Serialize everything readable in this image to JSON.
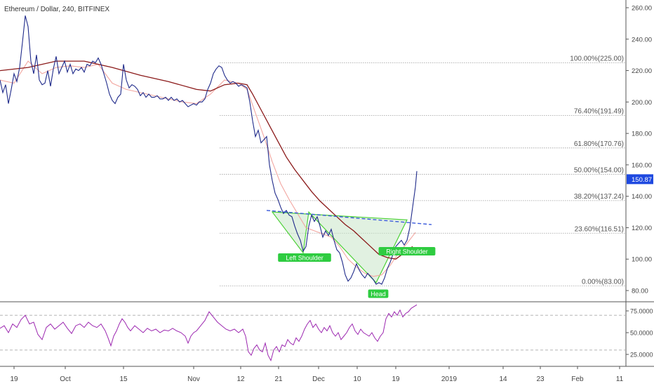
{
  "header": {
    "symbol": "Ethereum / Dollar, 240, BITFINEX"
  },
  "chart_data": {
    "type": "line",
    "title": "Ethereum / Dollar, 240, BITFINEX",
    "price_axis": {
      "ticks": [
        80,
        100,
        120,
        140,
        160,
        180,
        200,
        220,
        240,
        260
      ],
      "tick_labels": [
        "80.00",
        "100.00",
        "120.00",
        "140.00",
        "160.00",
        "180.00",
        "200.00",
        "220.00",
        "240.00",
        "260.00"
      ],
      "range": [
        75,
        265
      ]
    },
    "time_axis": {
      "ticks": [
        "19",
        "Oct",
        "15",
        "Nov",
        "12",
        "21",
        "Dec",
        "10",
        "19",
        "2019",
        "14",
        "23",
        "Feb",
        "11"
      ]
    },
    "current_price": {
      "value": 150.87,
      "label": "150.87",
      "color": "#1e49e0"
    },
    "fibonacci": [
      {
        "label": "100.00%(225.00)",
        "price": 225.0
      },
      {
        "label": "76.40%(191.49)",
        "price": 191.49
      },
      {
        "label": "61.80%(170.76)",
        "price": 170.76
      },
      {
        "label": "50.00%(154.00)",
        "price": 154.0
      },
      {
        "label": "38.20%(137.24)",
        "price": 137.24
      },
      {
        "label": "23.60%(116.51)",
        "price": 116.51
      },
      {
        "label": "0.00%(83.00)",
        "price": 83.0
      }
    ],
    "pattern_labels": [
      "Left Shoulder",
      "Head",
      "Right Shoulder"
    ],
    "price_series": [
      [
        0,
        214
      ],
      [
        4,
        206
      ],
      [
        8,
        211
      ],
      [
        12,
        199
      ],
      [
        16,
        208
      ],
      [
        20,
        218
      ],
      [
        24,
        213
      ],
      [
        28,
        222
      ],
      [
        32,
        238
      ],
      [
        36,
        255
      ],
      [
        40,
        248
      ],
      [
        44,
        226
      ],
      [
        48,
        218
      ],
      [
        52,
        230
      ],
      [
        56,
        214
      ],
      [
        60,
        211
      ],
      [
        64,
        212
      ],
      [
        68,
        220
      ],
      [
        72,
        210
      ],
      [
        76,
        221
      ],
      [
        80,
        229
      ],
      [
        84,
        218
      ],
      [
        88,
        222
      ],
      [
        92,
        226
      ],
      [
        96,
        219
      ],
      [
        100,
        224
      ],
      [
        104,
        218
      ],
      [
        108,
        221
      ],
      [
        112,
        220
      ],
      [
        116,
        222
      ],
      [
        120,
        219
      ],
      [
        124,
        224
      ],
      [
        128,
        223
      ],
      [
        132,
        226
      ],
      [
        136,
        225
      ],
      [
        140,
        228
      ],
      [
        144,
        224
      ],
      [
        148,
        218
      ],
      [
        152,
        212
      ],
      [
        156,
        205
      ],
      [
        160,
        201
      ],
      [
        164,
        199
      ],
      [
        168,
        203
      ],
      [
        172,
        205
      ],
      [
        176,
        224
      ],
      [
        180,
        214
      ],
      [
        184,
        209
      ],
      [
        188,
        211
      ],
      [
        192,
        210
      ],
      [
        196,
        208
      ],
      [
        200,
        204
      ],
      [
        204,
        206
      ],
      [
        208,
        203
      ],
      [
        212,
        205
      ],
      [
        216,
        203
      ],
      [
        220,
        203
      ],
      [
        224,
        204
      ],
      [
        228,
        202
      ],
      [
        232,
        202
      ],
      [
        236,
        203
      ],
      [
        240,
        201
      ],
      [
        244,
        203
      ],
      [
        248,
        201
      ],
      [
        252,
        202
      ],
      [
        256,
        200
      ],
      [
        260,
        201
      ],
      [
        264,
        199
      ],
      [
        268,
        197
      ],
      [
        272,
        198
      ],
      [
        276,
        199
      ],
      [
        280,
        198
      ],
      [
        284,
        200
      ],
      [
        288,
        200
      ],
      [
        292,
        202
      ],
      [
        296,
        208
      ],
      [
        300,
        212
      ],
      [
        304,
        218
      ],
      [
        308,
        221
      ],
      [
        312,
        223
      ],
      [
        316,
        222
      ],
      [
        320,
        217
      ],
      [
        324,
        214
      ],
      [
        328,
        212
      ],
      [
        332,
        213
      ],
      [
        336,
        212
      ],
      [
        340,
        210
      ],
      [
        344,
        211
      ],
      [
        348,
        210
      ],
      [
        352,
        209
      ],
      [
        356,
        200
      ],
      [
        360,
        188
      ],
      [
        364,
        178
      ],
      [
        368,
        182
      ],
      [
        372,
        174
      ],
      [
        376,
        176
      ],
      [
        380,
        178
      ],
      [
        384,
        160
      ],
      [
        388,
        150
      ],
      [
        392,
        142
      ],
      [
        396,
        138
      ],
      [
        400,
        133
      ],
      [
        404,
        129
      ],
      [
        408,
        131
      ],
      [
        412,
        128
      ],
      [
        416,
        127
      ],
      [
        420,
        121
      ],
      [
        424,
        116
      ],
      [
        428,
        112
      ],
      [
        432,
        105
      ],
      [
        436,
        108
      ],
      [
        440,
        121
      ],
      [
        444,
        128
      ],
      [
        448,
        124
      ],
      [
        452,
        127
      ],
      [
        456,
        121
      ],
      [
        460,
        114
      ],
      [
        464,
        118
      ],
      [
        468,
        115
      ],
      [
        472,
        119
      ],
      [
        476,
        112
      ],
      [
        480,
        106
      ],
      [
        484,
        104
      ],
      [
        488,
        98
      ],
      [
        492,
        90
      ],
      [
        496,
        86
      ],
      [
        500,
        88
      ],
      [
        504,
        92
      ],
      [
        508,
        97
      ],
      [
        512,
        93
      ],
      [
        516,
        90
      ],
      [
        520,
        88
      ],
      [
        524,
        91
      ],
      [
        528,
        89
      ],
      [
        532,
        87
      ],
      [
        536,
        84
      ],
      [
        540,
        85
      ],
      [
        544,
        84
      ],
      [
        548,
        88
      ],
      [
        552,
        94
      ],
      [
        556,
        98
      ],
      [
        560,
        103
      ],
      [
        564,
        108
      ],
      [
        568,
        110
      ],
      [
        572,
        112
      ],
      [
        576,
        109
      ],
      [
        580,
        112
      ],
      [
        584,
        120
      ],
      [
        588,
        133
      ],
      [
        592,
        146
      ],
      [
        594,
        156
      ]
    ],
    "ma_slow": [
      [
        0,
        220
      ],
      [
        40,
        222
      ],
      [
        80,
        226
      ],
      [
        120,
        226
      ],
      [
        160,
        222
      ],
      [
        200,
        217
      ],
      [
        240,
        213
      ],
      [
        280,
        208
      ],
      [
        300,
        207
      ],
      [
        320,
        211
      ],
      [
        340,
        212
      ],
      [
        352,
        211
      ],
      [
        360,
        205
      ],
      [
        372,
        195
      ],
      [
        384,
        185
      ],
      [
        396,
        175
      ],
      [
        408,
        165
      ],
      [
        420,
        157
      ],
      [
        432,
        150
      ],
      [
        444,
        143
      ],
      [
        456,
        137
      ],
      [
        468,
        132
      ],
      [
        480,
        127
      ],
      [
        492,
        122
      ],
      [
        504,
        118
      ],
      [
        516,
        113
      ],
      [
        528,
        108
      ],
      [
        540,
        103
      ],
      [
        552,
        101
      ],
      [
        564,
        100
      ],
      [
        576,
        104
      ],
      [
        588,
        108
      ]
    ],
    "ma_fast": [
      [
        0,
        214
      ],
      [
        20,
        212
      ],
      [
        40,
        226
      ],
      [
        60,
        218
      ],
      [
        80,
        222
      ],
      [
        100,
        223
      ],
      [
        120,
        222
      ],
      [
        140,
        224
      ],
      [
        160,
        212
      ],
      [
        180,
        208
      ],
      [
        200,
        206
      ],
      [
        220,
        204
      ],
      [
        240,
        202
      ],
      [
        260,
        200
      ],
      [
        280,
        199
      ],
      [
        300,
        205
      ],
      [
        320,
        214
      ],
      [
        340,
        212
      ],
      [
        352,
        208
      ],
      [
        364,
        193
      ],
      [
        376,
        178
      ],
      [
        388,
        162
      ],
      [
        400,
        148
      ],
      [
        412,
        138
      ],
      [
        424,
        129
      ],
      [
        436,
        120
      ],
      [
        448,
        118
      ],
      [
        460,
        116
      ],
      [
        472,
        114
      ],
      [
        484,
        108
      ],
      [
        496,
        100
      ],
      [
        508,
        95
      ],
      [
        520,
        91
      ],
      [
        532,
        89
      ],
      [
        544,
        90
      ],
      [
        556,
        96
      ],
      [
        568,
        104
      ],
      [
        580,
        110
      ],
      [
        592,
        117
      ]
    ],
    "rsi": {
      "ticks": [
        25,
        50,
        75
      ],
      "tick_labels": [
        "25.0000",
        "50.0000",
        "75.0000"
      ],
      "levels": [
        30,
        70
      ],
      "range": [
        15,
        85
      ],
      "series": [
        [
          0,
          55
        ],
        [
          6,
          58
        ],
        [
          12,
          50
        ],
        [
          18,
          60
        ],
        [
          24,
          56
        ],
        [
          30,
          65
        ],
        [
          36,
          70
        ],
        [
          42,
          60
        ],
        [
          48,
          62
        ],
        [
          54,
          48
        ],
        [
          60,
          42
        ],
        [
          66,
          56
        ],
        [
          72,
          60
        ],
        [
          78,
          54
        ],
        [
          84,
          58
        ],
        [
          90,
          62
        ],
        [
          96,
          55
        ],
        [
          102,
          49
        ],
        [
          108,
          58
        ],
        [
          114,
          60
        ],
        [
          120,
          56
        ],
        [
          126,
          62
        ],
        [
          132,
          58
        ],
        [
          138,
          56
        ],
        [
          144,
          60
        ],
        [
          150,
          52
        ],
        [
          154,
          44
        ],
        [
          158,
          35
        ],
        [
          162,
          46
        ],
        [
          166,
          52
        ],
        [
          170,
          60
        ],
        [
          174,
          66
        ],
        [
          178,
          62
        ],
        [
          182,
          56
        ],
        [
          186,
          52
        ],
        [
          192,
          58
        ],
        [
          198,
          54
        ],
        [
          204,
          50
        ],
        [
          210,
          55
        ],
        [
          216,
          52
        ],
        [
          222,
          54
        ],
        [
          228,
          50
        ],
        [
          234,
          53
        ],
        [
          240,
          52
        ],
        [
          246,
          55
        ],
        [
          252,
          52
        ],
        [
          258,
          50
        ],
        [
          264,
          46
        ],
        [
          268,
          38
        ],
        [
          272,
          46
        ],
        [
          276,
          50
        ],
        [
          280,
          52
        ],
        [
          286,
          58
        ],
        [
          292,
          64
        ],
        [
          298,
          74
        ],
        [
          304,
          68
        ],
        [
          310,
          62
        ],
        [
          316,
          58
        ],
        [
          322,
          54
        ],
        [
          328,
          52
        ],
        [
          334,
          54
        ],
        [
          340,
          50
        ],
        [
          346,
          54
        ],
        [
          350,
          46
        ],
        [
          354,
          28
        ],
        [
          358,
          24
        ],
        [
          362,
          32
        ],
        [
          366,
          36
        ],
        [
          370,
          30
        ],
        [
          374,
          28
        ],
        [
          378,
          38
        ],
        [
          382,
          24
        ],
        [
          386,
          18
        ],
        [
          390,
          30
        ],
        [
          394,
          34
        ],
        [
          398,
          28
        ],
        [
          402,
          36
        ],
        [
          406,
          34
        ],
        [
          410,
          42
        ],
        [
          414,
          38
        ],
        [
          418,
          36
        ],
        [
          422,
          44
        ],
        [
          426,
          40
        ],
        [
          430,
          46
        ],
        [
          434,
          54
        ],
        [
          438,
          60
        ],
        [
          442,
          64
        ],
        [
          446,
          56
        ],
        [
          450,
          60
        ],
        [
          454,
          54
        ],
        [
          458,
          50
        ],
        [
          462,
          56
        ],
        [
          466,
          52
        ],
        [
          470,
          58
        ],
        [
          474,
          50
        ],
        [
          478,
          46
        ],
        [
          482,
          50
        ],
        [
          486,
          42
        ],
        [
          490,
          46
        ],
        [
          494,
          50
        ],
        [
          498,
          56
        ],
        [
          502,
          60
        ],
        [
          506,
          52
        ],
        [
          510,
          48
        ],
        [
          514,
          54
        ],
        [
          518,
          50
        ],
        [
          522,
          48
        ],
        [
          526,
          46
        ],
        [
          530,
          50
        ],
        [
          534,
          44
        ],
        [
          538,
          40
        ],
        [
          542,
          46
        ],
        [
          546,
          50
        ],
        [
          550,
          66
        ],
        [
          554,
          72
        ],
        [
          558,
          68
        ],
        [
          562,
          74
        ],
        [
          566,
          70
        ],
        [
          570,
          76
        ],
        [
          574,
          68
        ],
        [
          578,
          72
        ],
        [
          582,
          74
        ],
        [
          586,
          78
        ],
        [
          590,
          80
        ],
        [
          594,
          82
        ]
      ]
    },
    "colors": {
      "price": "#1f2a8a",
      "ma_slow": "#8b1a1a",
      "ma_fast": "#f2a6a0",
      "rsi": "#9c27b0",
      "pattern_fill": "#c8e6c9",
      "pattern_stroke": "#4cd137",
      "neckline": "#3b5bdb",
      "grid": "#9e9e9e"
    }
  }
}
